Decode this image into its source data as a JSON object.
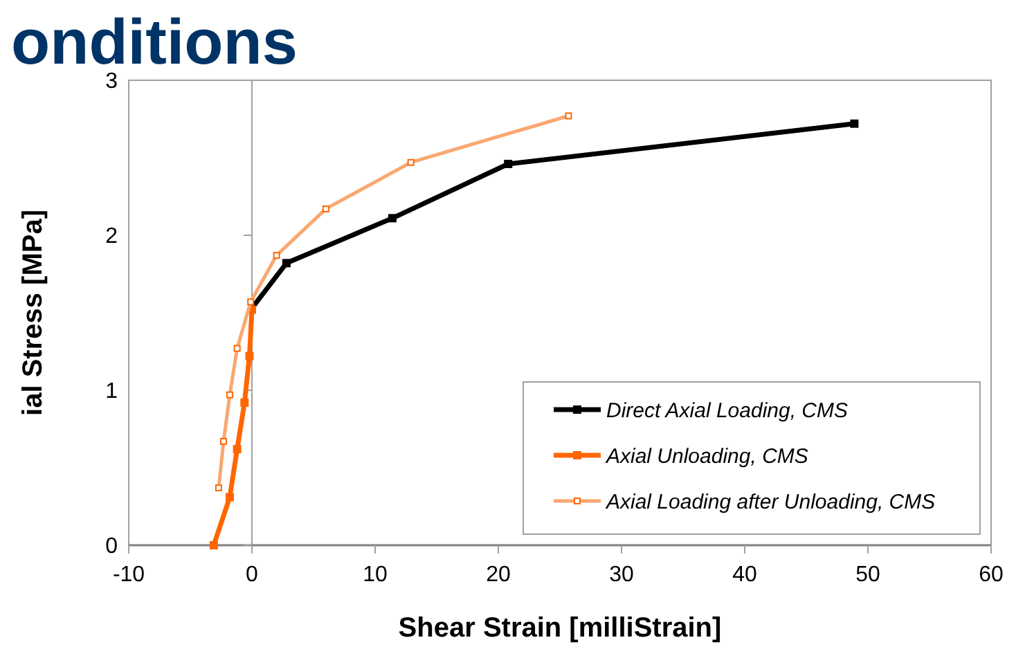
{
  "chart_data": {
    "type": "line",
    "title": "onditions",
    "xlabel": "Shear Strain [milliStrain]",
    "ylabel": "ial Stress [MPa]",
    "xlim": [
      -10,
      60
    ],
    "xticks": [
      -10,
      0,
      10,
      20,
      30,
      40,
      50,
      60
    ],
    "ylim": [
      0,
      3
    ],
    "yticks": [
      0,
      1,
      2,
      3
    ],
    "legend": "bottom right",
    "marker": "square",
    "series": [
      {
        "name": "Direct Axial Loading, CMS",
        "color": "#000000",
        "x": [
          0,
          2.8,
          11.4,
          20.8,
          48.9
        ],
        "values": [
          1.53,
          1.82,
          2.11,
          2.46,
          2.72
        ]
      },
      {
        "name": "Axial Unloading, CMS",
        "color": "#ff6600",
        "x": [
          0,
          -0.2,
          -0.6,
          -1.2,
          -1.8,
          -3.1
        ],
        "values": [
          1.52,
          1.22,
          0.92,
          0.62,
          0.31,
          0
        ]
      },
      {
        "name": "Axial Loading after Unloading, CMS",
        "color": "#f9a870",
        "x": [
          -2.7,
          -2.3,
          -1.8,
          -1.2,
          -0.1,
          2.0,
          6.0,
          12.9,
          25.7
        ],
        "values": [
          0.37,
          0.67,
          0.97,
          1.27,
          1.57,
          1.87,
          2.17,
          2.47,
          2.77
        ]
      }
    ]
  }
}
